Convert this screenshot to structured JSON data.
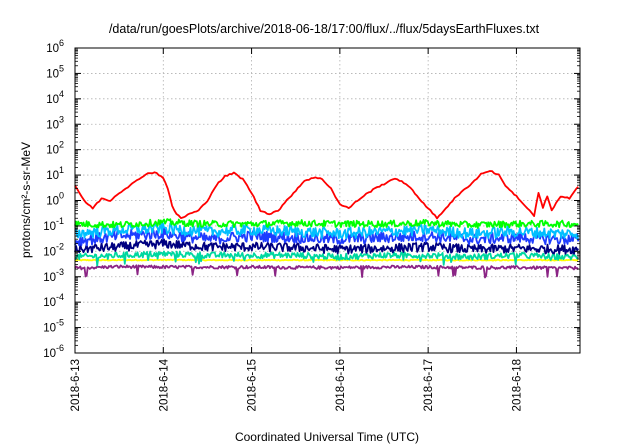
{
  "chart_data": {
    "type": "line",
    "title": "/data/run/goesPlots/archive/2018-06-18/17:00/flux/../flux/5daysEarthFluxes.txt",
    "xlabel": "Coordinated Universal Time (UTC)",
    "ylabel": "protons/cm²-s-sr-MeV",
    "y_scale": "log",
    "xlim_days": [
      0,
      5.72
    ],
    "ylim": [
      1e-06,
      1000000.0
    ],
    "x_tick_labels": [
      "2018-6-13",
      "2018-6-14",
      "2018-6-15",
      "2018-6-16",
      "2018-6-17",
      "2018-6-18"
    ],
    "y_tick_labels": [
      {
        "base": "10",
        "exp": "-6"
      },
      {
        "base": "10",
        "exp": "-5"
      },
      {
        "base": "10",
        "exp": "-4"
      },
      {
        "base": "10",
        "exp": "-3"
      },
      {
        "base": "10",
        "exp": "-2"
      },
      {
        "base": "10",
        "exp": "-1"
      },
      {
        "base": "10",
        "exp": "0"
      },
      {
        "base": "10",
        "exp": "1"
      },
      {
        "base": "10",
        "exp": "2"
      },
      {
        "base": "10",
        "exp": "3"
      },
      {
        "base": "10",
        "exp": "4"
      },
      {
        "base": "10",
        "exp": "5"
      },
      {
        "base": "10",
        "exp": "6"
      }
    ],
    "grid": true,
    "series": [
      {
        "color": "#ff0000",
        "x": [
          0.0,
          0.1,
          0.2,
          0.3,
          0.4,
          0.5,
          0.6,
          0.7,
          0.8,
          0.9,
          1.0,
          1.05,
          1.1,
          1.15,
          1.2,
          1.3,
          1.4,
          1.5,
          1.6,
          1.7,
          1.8,
          1.9,
          2.0,
          2.1,
          2.2,
          2.3,
          2.4,
          2.5,
          2.6,
          2.7,
          2.8,
          2.9,
          3.0,
          3.1,
          3.2,
          3.3,
          3.4,
          3.5,
          3.6,
          3.7,
          3.8,
          3.9,
          4.0,
          4.1,
          4.2,
          4.3,
          4.4,
          4.5,
          4.6,
          4.7,
          4.8,
          4.9,
          5.0,
          5.1,
          5.2,
          5.25,
          5.3,
          5.35,
          5.4,
          5.5,
          5.6,
          5.7
        ],
        "values": [
          4.0,
          1.0,
          0.5,
          1.2,
          1.0,
          2.0,
          3.5,
          6.0,
          11,
          13,
          8,
          3.0,
          0.6,
          0.3,
          0.2,
          0.3,
          0.4,
          1.0,
          4.0,
          9.0,
          12,
          7.0,
          2.0,
          0.4,
          0.3,
          0.4,
          1.0,
          2.5,
          6.0,
          8.0,
          7.0,
          3.0,
          0.7,
          0.5,
          1.0,
          1.8,
          3.0,
          4.5,
          7.0,
          6.0,
          3.0,
          1.2,
          0.5,
          0.2,
          0.5,
          1.2,
          2.5,
          5.0,
          11,
          15,
          10,
          3.0,
          1.5,
          0.6,
          0.25,
          2.0,
          0.5,
          1.5,
          0.4,
          1.5,
          1.2,
          3.5
        ]
      },
      {
        "color": "#00ff00",
        "x": [
          0.0,
          0.5,
          1.0,
          1.5,
          2.0,
          2.5,
          3.0,
          3.5,
          4.0,
          4.5,
          5.0,
          5.5,
          5.7
        ],
        "values": [
          0.12,
          0.11,
          0.14,
          0.12,
          0.12,
          0.13,
          0.12,
          0.12,
          0.13,
          0.11,
          0.12,
          0.12,
          0.12
        ]
      },
      {
        "color": "#00bfff",
        "x": [
          0.0,
          0.5,
          1.0,
          1.5,
          2.0,
          2.5,
          3.0,
          3.5,
          4.0,
          4.5,
          5.0,
          5.5,
          5.7
        ],
        "values": [
          0.05,
          0.07,
          0.08,
          0.06,
          0.07,
          0.06,
          0.05,
          0.06,
          0.07,
          0.05,
          0.06,
          0.05,
          0.05
        ]
      },
      {
        "color": "#1e3cff",
        "x": [
          0.0,
          0.5,
          1.0,
          1.5,
          2.0,
          2.5,
          3.0,
          3.5,
          4.0,
          4.5,
          5.0,
          5.5,
          5.7
        ],
        "values": [
          0.025,
          0.04,
          0.05,
          0.03,
          0.04,
          0.035,
          0.03,
          0.035,
          0.04,
          0.03,
          0.035,
          0.03,
          0.03
        ]
      },
      {
        "color": "#000080",
        "x": [
          0.0,
          0.5,
          1.0,
          1.5,
          2.0,
          2.5,
          3.0,
          3.5,
          4.0,
          4.5,
          5.0,
          5.5,
          5.7
        ],
        "values": [
          0.012,
          0.015,
          0.02,
          0.015,
          0.015,
          0.014,
          0.012,
          0.013,
          0.015,
          0.012,
          0.013,
          0.012,
          0.012
        ]
      },
      {
        "color": "#00d8a0",
        "x": [
          0.0,
          0.5,
          1.0,
          1.5,
          2.0,
          2.5,
          3.0,
          3.5,
          4.0,
          4.5,
          5.0,
          5.5,
          5.7
        ],
        "values": [
          0.006,
          0.007,
          0.008,
          0.007,
          0.007,
          0.007,
          0.006,
          0.007,
          0.007,
          0.006,
          0.007,
          0.006,
          0.006
        ]
      },
      {
        "color": "#ffff00",
        "x": [
          0.0,
          0.5,
          1.0,
          1.5,
          2.0,
          2.5,
          3.0,
          3.5,
          4.0,
          4.5,
          5.0,
          5.5,
          5.7
        ],
        "values": [
          0.0045,
          0.0045,
          0.0046,
          0.0045,
          0.0045,
          0.0045,
          0.0045,
          0.0045,
          0.0045,
          0.0045,
          0.0045,
          0.0045,
          0.0045
        ]
      },
      {
        "color": "#8b2585",
        "x": [
          0.0,
          0.5,
          1.0,
          1.5,
          2.0,
          2.5,
          3.0,
          3.5,
          4.0,
          4.5,
          5.0,
          5.5,
          5.7
        ],
        "values": [
          0.0022,
          0.0025,
          0.0024,
          0.0024,
          0.0024,
          0.0023,
          0.0023,
          0.0024,
          0.0024,
          0.0023,
          0.0023,
          0.0022,
          0.0022
        ]
      }
    ]
  }
}
